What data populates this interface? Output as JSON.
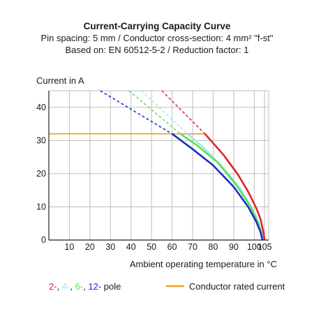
{
  "chart_data": {
    "type": "line",
    "title": "Current-Carrying Capacity Curve",
    "subtitle_lines": [
      "Pin spacing: 5 mm / Conductor cross-section: 4 mm² \"f-st\"",
      "Based on: EN 60512-5-2 / Reduction factor: 1"
    ],
    "ylabel": "Current in A",
    "xlabel": "Ambient operating temperature in °C",
    "xlim": [
      0,
      107
    ],
    "ylim": [
      0,
      45
    ],
    "x_ticks": [
      10,
      20,
      30,
      40,
      50,
      60,
      70,
      80,
      90,
      100,
      105
    ],
    "y_ticks": [
      0,
      10,
      20,
      30,
      40
    ],
    "grid": true,
    "conductor_rated_current": {
      "value": 32,
      "x_end": 76,
      "color": "#f0a020",
      "label": "Conductor rated current"
    },
    "series": [
      {
        "name": "2-",
        "color": "#e8202a",
        "dashed": [
          [
            55,
            45
          ],
          [
            76,
            32
          ]
        ],
        "solid": [
          [
            76,
            32
          ],
          [
            85,
            25.7
          ],
          [
            92,
            19.8
          ],
          [
            97,
            14.6
          ],
          [
            101,
            9.6
          ],
          [
            103,
            6.4
          ],
          [
            104.5,
            2.4
          ],
          [
            105,
            0
          ]
        ]
      },
      {
        "name": "4-",
        "color": "#a6e8e0",
        "dashed": [
          [
            45,
            45
          ],
          [
            67.5,
            32
          ]
        ],
        "solid": [
          [
            67.5,
            32
          ],
          [
            75,
            28
          ],
          [
            85,
            21.7
          ],
          [
            93,
            15.6
          ],
          [
            99,
            9.5
          ],
          [
            102,
            5.4
          ],
          [
            103.5,
            2.2
          ],
          [
            104,
            0
          ]
        ]
      },
      {
        "name": "6-",
        "color": "#5ae05a",
        "dashed": [
          [
            39,
            45
          ],
          [
            64,
            32
          ]
        ],
        "solid": [
          [
            64,
            32
          ],
          [
            72,
            28.6
          ],
          [
            82,
            23.5
          ],
          [
            91,
            16.8
          ],
          [
            98,
            10.3
          ],
          [
            102,
            5
          ],
          [
            103.5,
            2
          ],
          [
            104,
            0
          ]
        ]
      },
      {
        "name": "12-",
        "color": "#1a2ec8",
        "dashed": [
          [
            25,
            45
          ],
          [
            60,
            32
          ]
        ],
        "solid": [
          [
            60,
            32
          ],
          [
            70,
            27.4
          ],
          [
            80,
            22.5
          ],
          [
            90,
            16
          ],
          [
            97,
            10
          ],
          [
            101,
            5.5
          ],
          [
            103,
            2.5
          ],
          [
            104,
            0
          ]
        ]
      }
    ],
    "legend_suffix": "pole",
    "legend_separator": ", "
  }
}
